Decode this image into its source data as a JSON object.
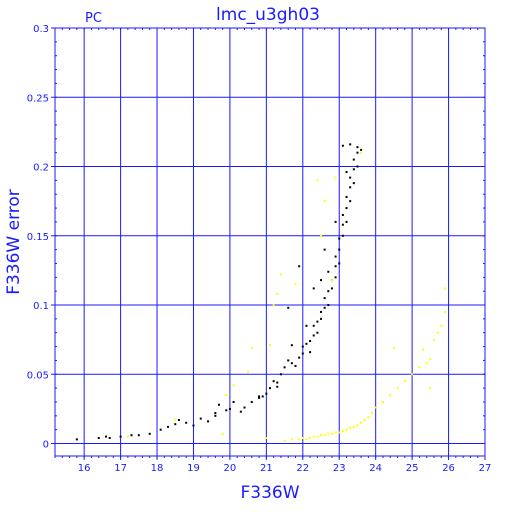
{
  "chart_data": {
    "type": "scatter",
    "title": "lmc_u3gh03",
    "corner_label": "PC",
    "xlabel": "F336W",
    "ylabel": "F336W error",
    "xlim": [
      15.2,
      27
    ],
    "ylim": [
      -0.009,
      0.3
    ],
    "xticks": [
      "16",
      "17",
      "18",
      "19",
      "20",
      "21",
      "22",
      "23",
      "24",
      "25",
      "26",
      "27"
    ],
    "yticks": [
      "0",
      "0.05",
      "0.1",
      "0.15",
      "0.2",
      "0.25",
      "0.3"
    ],
    "grid": true,
    "colors": {
      "axis": "#1a1aff",
      "grid": "#1a1aff",
      "black_series": "#000000",
      "yellow_series": "#ffff00"
    },
    "series": [
      {
        "color": "#000000",
        "points": [
          [
            15.8,
            0.003
          ],
          [
            16.4,
            0.004
          ],
          [
            16.6,
            0.005
          ],
          [
            16.7,
            0.004
          ],
          [
            17.0,
            0.005
          ],
          [
            17.3,
            0.006
          ],
          [
            17.5,
            0.006
          ],
          [
            17.8,
            0.007
          ],
          [
            18.1,
            0.01
          ],
          [
            18.3,
            0.012
          ],
          [
            18.5,
            0.014
          ],
          [
            18.6,
            0.017
          ],
          [
            18.8,
            0.015
          ],
          [
            19.0,
            0.013
          ],
          [
            19.2,
            0.018
          ],
          [
            19.4,
            0.016
          ],
          [
            19.6,
            0.02
          ],
          [
            19.7,
            0.028
          ],
          [
            19.9,
            0.024
          ],
          [
            20.0,
            0.025
          ],
          [
            20.1,
            0.03
          ],
          [
            20.3,
            0.023
          ],
          [
            20.4,
            0.026
          ],
          [
            20.6,
            0.03
          ],
          [
            20.8,
            0.033
          ],
          [
            20.9,
            0.034
          ],
          [
            21.0,
            0.036
          ],
          [
            21.1,
            0.04
          ],
          [
            21.2,
            0.045
          ],
          [
            21.3,
            0.044
          ],
          [
            21.4,
            0.05
          ],
          [
            21.5,
            0.055
          ],
          [
            21.6,
            0.06
          ],
          [
            21.7,
            0.058
          ],
          [
            21.8,
            0.056
          ],
          [
            21.9,
            0.062
          ],
          [
            22.0,
            0.065
          ],
          [
            22.0,
            0.07
          ],
          [
            22.1,
            0.072
          ],
          [
            22.2,
            0.074
          ],
          [
            22.3,
            0.078
          ],
          [
            22.3,
            0.085
          ],
          [
            22.4,
            0.08
          ],
          [
            22.4,
            0.088
          ],
          [
            22.5,
            0.09
          ],
          [
            22.5,
            0.095
          ],
          [
            22.6,
            0.098
          ],
          [
            22.6,
            0.105
          ],
          [
            22.7,
            0.1
          ],
          [
            22.7,
            0.11
          ],
          [
            22.8,
            0.112
          ],
          [
            22.8,
            0.118
          ],
          [
            22.9,
            0.12
          ],
          [
            22.9,
            0.128
          ],
          [
            22.9,
            0.135
          ],
          [
            23.0,
            0.13
          ],
          [
            23.0,
            0.14
          ],
          [
            23.0,
            0.148
          ],
          [
            23.1,
            0.15
          ],
          [
            23.1,
            0.158
          ],
          [
            23.1,
            0.165
          ],
          [
            23.2,
            0.16
          ],
          [
            23.2,
            0.17
          ],
          [
            23.2,
            0.178
          ],
          [
            23.3,
            0.175
          ],
          [
            23.3,
            0.185
          ],
          [
            23.3,
            0.192
          ],
          [
            23.4,
            0.188
          ],
          [
            23.4,
            0.198
          ],
          [
            23.4,
            0.205
          ],
          [
            23.5,
            0.2
          ],
          [
            23.5,
            0.21
          ],
          [
            23.5,
            0.214
          ],
          [
            23.6,
            0.212
          ],
          [
            23.1,
            0.215
          ],
          [
            23.3,
            0.216
          ],
          [
            22.6,
            0.14
          ],
          [
            22.9,
            0.16
          ],
          [
            21.9,
            0.128
          ],
          [
            22.3,
            0.112
          ],
          [
            21.6,
            0.098
          ],
          [
            20.8,
            0.034
          ],
          [
            19.6,
            0.022
          ],
          [
            22.1,
            0.085
          ],
          [
            22.7,
            0.124
          ],
          [
            23.2,
            0.196
          ],
          [
            22.5,
            0.118
          ],
          [
            21.7,
            0.071
          ],
          [
            21.3,
            0.041
          ],
          [
            22.2,
            0.066
          ]
        ]
      },
      {
        "color": "#ffff00",
        "points": [
          [
            17.2,
            0.005
          ],
          [
            18.5,
            0.017
          ],
          [
            19.8,
            0.007
          ],
          [
            20.1,
            0.042
          ],
          [
            20.5,
            0.052
          ],
          [
            20.6,
            0.069
          ],
          [
            21.0,
            0.004
          ],
          [
            21.2,
            0.1
          ],
          [
            21.3,
            0.108
          ],
          [
            21.5,
            0.002
          ],
          [
            21.7,
            0.003
          ],
          [
            21.9,
            0.003
          ],
          [
            22.0,
            0.004
          ],
          [
            22.1,
            0.003
          ],
          [
            22.2,
            0.004
          ],
          [
            22.3,
            0.005
          ],
          [
            22.4,
            0.005
          ],
          [
            22.5,
            0.006
          ],
          [
            22.6,
            0.006
          ],
          [
            22.7,
            0.007
          ],
          [
            22.8,
            0.007
          ],
          [
            22.9,
            0.008
          ],
          [
            23.0,
            0.008
          ],
          [
            23.1,
            0.009
          ],
          [
            23.2,
            0.01
          ],
          [
            23.3,
            0.011
          ],
          [
            23.4,
            0.012
          ],
          [
            23.5,
            0.013
          ],
          [
            23.6,
            0.015
          ],
          [
            23.7,
            0.017
          ],
          [
            23.8,
            0.019
          ],
          [
            23.9,
            0.022
          ],
          [
            24.0,
            0.026
          ],
          [
            24.2,
            0.03
          ],
          [
            24.4,
            0.035
          ],
          [
            24.6,
            0.04
          ],
          [
            24.8,
            0.045
          ],
          [
            25.0,
            0.05
          ],
          [
            25.2,
            0.055
          ],
          [
            25.4,
            0.058
          ],
          [
            25.5,
            0.061
          ],
          [
            25.6,
            0.075
          ],
          [
            25.7,
            0.08
          ],
          [
            25.8,
            0.085
          ],
          [
            25.9,
            0.095
          ],
          [
            25.9,
            0.112
          ],
          [
            25.3,
            0.068
          ],
          [
            21.4,
            0.122
          ],
          [
            21.8,
            0.115
          ],
          [
            22.6,
            0.175
          ],
          [
            22.9,
            0.192
          ],
          [
            23.6,
            0.21
          ],
          [
            22.5,
            0.15
          ],
          [
            21.1,
            0.071
          ],
          [
            19.9,
            0.035
          ],
          [
            22.4,
            0.19
          ],
          [
            22.8,
            0.118
          ],
          [
            24.5,
            0.069
          ],
          [
            25.5,
            0.04
          ]
        ]
      }
    ]
  }
}
